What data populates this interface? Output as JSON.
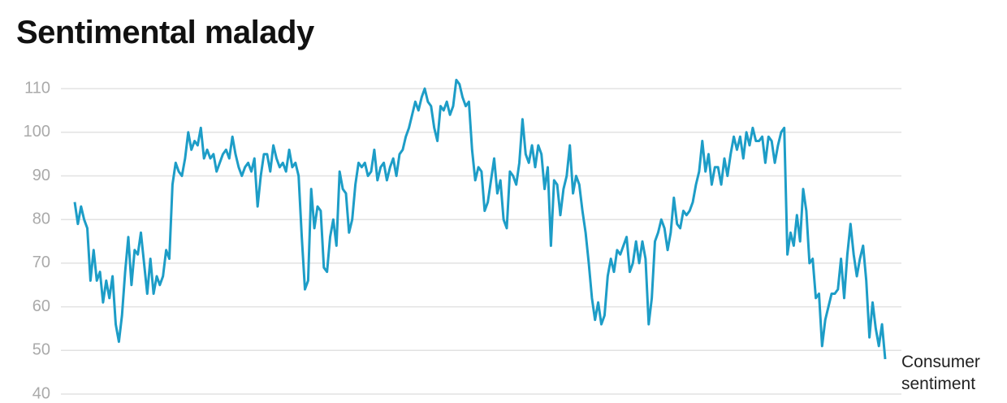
{
  "chart_data": {
    "type": "line",
    "title": "Sentimental malady",
    "series": [
      {
        "name": "Consumer sentiment",
        "color": "#1d9dc7",
        "values": [
          84,
          79,
          83,
          80,
          78,
          66,
          73,
          66,
          68,
          61,
          66,
          62,
          67,
          56,
          52,
          58,
          68,
          76,
          65,
          73,
          72,
          77,
          70,
          63,
          71,
          63,
          67,
          65,
          67,
          73,
          71,
          88,
          93,
          91,
          90,
          94,
          100,
          96,
          98,
          97,
          101,
          94,
          96,
          94,
          95,
          91,
          93,
          95,
          96,
          94,
          99,
          95,
          92,
          90,
          92,
          93,
          91,
          94,
          83,
          90,
          95,
          95,
          91,
          97,
          94,
          92,
          93,
          91,
          96,
          92,
          93,
          90,
          76,
          64,
          66,
          87,
          78,
          83,
          82,
          69,
          68,
          76,
          80,
          74,
          91,
          87,
          86,
          77,
          80,
          88,
          93,
          92,
          93,
          90,
          91,
          96,
          89,
          92,
          93,
          89,
          92,
          94,
          90,
          95,
          96,
          99,
          101,
          104,
          107,
          105,
          108,
          110,
          107,
          106,
          101,
          98,
          106,
          105,
          107,
          104,
          106,
          112,
          111,
          108,
          106,
          107,
          96,
          89,
          92,
          91,
          82,
          84,
          89,
          94,
          86,
          89,
          80,
          78,
          91,
          90,
          88,
          93,
          103,
          95,
          93,
          97,
          92,
          97,
          95,
          87,
          92,
          74,
          89,
          88,
          81,
          87,
          90,
          97,
          86,
          90,
          88,
          82,
          77,
          70,
          62,
          57,
          61,
          56,
          58,
          67,
          71,
          68,
          73,
          72,
          74,
          76,
          68,
          70,
          75,
          70,
          75,
          71,
          56,
          62,
          75,
          77,
          80,
          78,
          73,
          77,
          85,
          79,
          78,
          82,
          81,
          82,
          84,
          88,
          91,
          98,
          91,
          95,
          88,
          92,
          92,
          88,
          94,
          90,
          95,
          99,
          96,
          99,
          94,
          100,
          97,
          101,
          98,
          98,
          99,
          93,
          99,
          98,
          93,
          97,
          100,
          101,
          72,
          77,
          74,
          81,
          75,
          87,
          82,
          70,
          71,
          62,
          63,
          51,
          57,
          60,
          63,
          63,
          64,
          71,
          62,
          72,
          79,
          72,
          67,
          71,
          74,
          66,
          53,
          61,
          55,
          51,
          56,
          48
        ]
      }
    ],
    "ylim": [
      40,
      112
    ],
    "yticks": [
      40,
      50,
      60,
      70,
      80,
      90,
      100,
      110
    ],
    "grid": true
  }
}
